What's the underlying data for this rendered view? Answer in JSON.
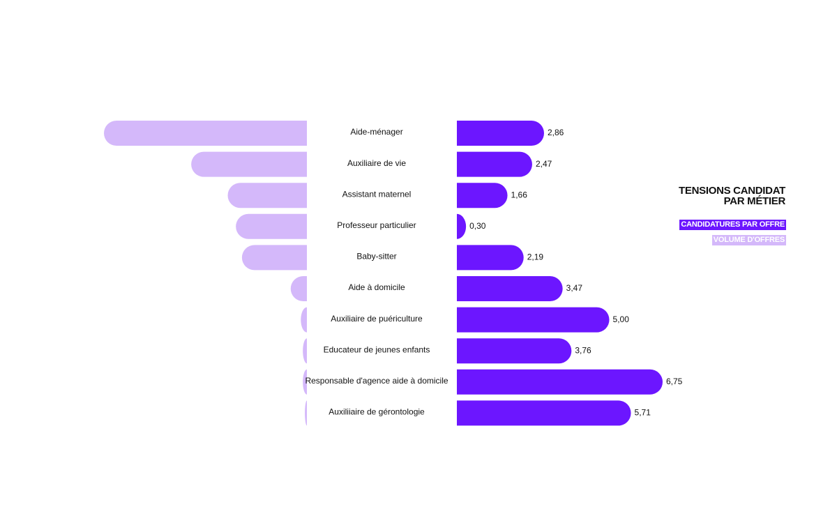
{
  "title_line1": "TENSIONS CANDIDAT",
  "title_line2": "PAR MÉTIER",
  "legend": {
    "right_series": "CANDIDATURES PAR OFFRE",
    "left_series": "VOLUME D'OFFRES"
  },
  "colors": {
    "right": "#6c16ff",
    "left": "#d4b8fa"
  },
  "chart_data": {
    "type": "bar",
    "layout": "butterfly",
    "categories": [
      "Aide-ménager",
      "Auxiliaire de vie",
      "Assistant maternel",
      "Professeur particulier",
      "Baby-sitter",
      "Aide à domicile",
      "Auxiliaire de puériculture",
      "Educateur de jeunes enfants",
      "Responsable d'agence aide à domicile",
      "Auxiliiaire de gérontologie"
    ],
    "series": [
      {
        "name": "CANDIDATURES PAR OFFRE",
        "values": [
          2.86,
          2.47,
          1.66,
          0.3,
          2.19,
          3.47,
          5.0,
          3.76,
          6.75,
          5.71
        ],
        "value_labels": [
          "2,86",
          "2,47",
          "1,66",
          "0,30",
          "2,19",
          "3,47",
          "5,00",
          "3,76",
          "6,75",
          "5,71"
        ]
      },
      {
        "name": "VOLUME D'OFFRES",
        "values": [
          100,
          57,
          39,
          35,
          32,
          8,
          3,
          2,
          2,
          1
        ]
      }
    ],
    "right_xlim": [
      0,
      6.75
    ],
    "left_xlim": [
      0,
      100
    ]
  }
}
